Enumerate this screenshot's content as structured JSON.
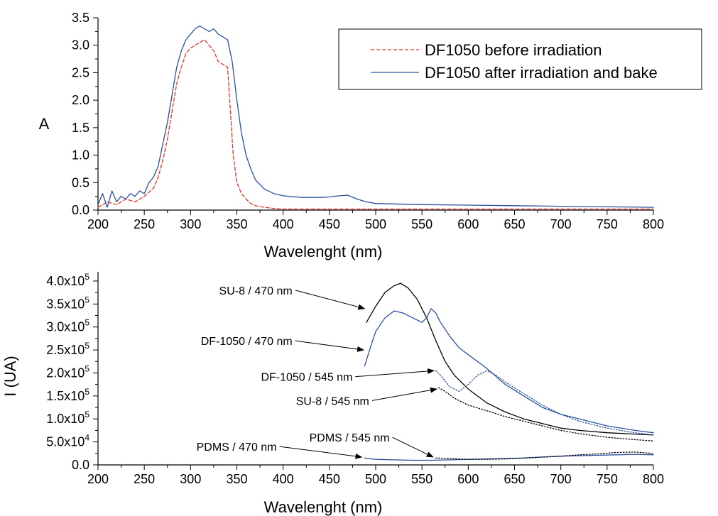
{
  "chart_data": [
    {
      "type": "line",
      "panel": "top",
      "xlabel": "Wavelenght (nm)",
      "ylabel": "A",
      "xlim": [
        200,
        800
      ],
      "ylim": [
        0,
        3.5
      ],
      "x_ticks": [
        "200",
        "250",
        "300",
        "350",
        "400",
        "450",
        "500",
        "550",
        "600",
        "650",
        "700",
        "750",
        "800"
      ],
      "y_ticks": [
        "0.0",
        "0.5",
        "1.0",
        "1.5",
        "2.0",
        "2.5",
        "3.0",
        "3.5"
      ],
      "legend_placement": "top-right",
      "series": [
        {
          "name": "DF1050 before irradiation",
          "color": "#e8332a",
          "style": "dashed",
          "x": [
            200,
            210,
            220,
            230,
            240,
            250,
            260,
            265,
            270,
            275,
            280,
            285,
            290,
            295,
            300,
            305,
            310,
            315,
            320,
            325,
            330,
            335,
            340,
            343,
            346,
            350,
            355,
            360,
            365,
            370,
            380,
            390,
            400,
            420,
            450,
            500,
            600,
            700,
            800
          ],
          "y": [
            0.05,
            0.15,
            0.1,
            0.2,
            0.15,
            0.25,
            0.4,
            0.6,
            0.9,
            1.3,
            1.8,
            2.3,
            2.6,
            2.85,
            2.95,
            3.0,
            3.05,
            3.1,
            3.0,
            2.9,
            2.7,
            2.65,
            2.6,
            1.8,
            1.0,
            0.5,
            0.3,
            0.2,
            0.12,
            0.08,
            0.05,
            0.03,
            0.02,
            0.02,
            0.02,
            0.02,
            0.02,
            0.02,
            0.02
          ]
        },
        {
          "name": "DF1050 after irradiation and bake",
          "color": "#2a4fa0",
          "style": "solid",
          "x": [
            200,
            205,
            210,
            215,
            220,
            225,
            230,
            235,
            240,
            245,
            250,
            255,
            260,
            265,
            270,
            275,
            280,
            285,
            290,
            295,
            300,
            305,
            310,
            315,
            320,
            325,
            330,
            335,
            340,
            345,
            350,
            355,
            360,
            365,
            370,
            380,
            390,
            400,
            420,
            440,
            450,
            460,
            470,
            480,
            490,
            500,
            550,
            600,
            650,
            700,
            750,
            800
          ],
          "y": [
            0.1,
            0.3,
            0.05,
            0.35,
            0.15,
            0.25,
            0.2,
            0.3,
            0.25,
            0.35,
            0.3,
            0.5,
            0.6,
            0.8,
            1.2,
            1.6,
            2.1,
            2.6,
            2.9,
            3.1,
            3.2,
            3.3,
            3.35,
            3.3,
            3.25,
            3.3,
            3.2,
            3.15,
            3.1,
            2.7,
            2.0,
            1.4,
            1.0,
            0.75,
            0.55,
            0.38,
            0.3,
            0.26,
            0.23,
            0.23,
            0.24,
            0.26,
            0.27,
            0.2,
            0.15,
            0.12,
            0.1,
            0.09,
            0.08,
            0.07,
            0.06,
            0.05
          ]
        }
      ]
    },
    {
      "type": "line",
      "panel": "bottom",
      "xlabel": "Wavelenght (nm)",
      "ylabel": "I (UA)",
      "xlim": [
        200,
        800
      ],
      "ylim": [
        0,
        420000
      ],
      "x_ticks": [
        "200",
        "250",
        "300",
        "350",
        "400",
        "450",
        "500",
        "550",
        "600",
        "650",
        "700",
        "750",
        "800"
      ],
      "y_ticks": [
        {
          "value": 0,
          "label": "0.0",
          "sup": ""
        },
        {
          "value": 50000,
          "label": "5.0x10",
          "sup": "4"
        },
        {
          "value": 100000,
          "label": "1.0x10",
          "sup": "5"
        },
        {
          "value": 150000,
          "label": "1.5x10",
          "sup": "5"
        },
        {
          "value": 200000,
          "label": "2.0x10",
          "sup": "5"
        },
        {
          "value": 250000,
          "label": "2.5x10",
          "sup": "5"
        },
        {
          "value": 300000,
          "label": "3.0x10",
          "sup": "5"
        },
        {
          "value": 350000,
          "label": "3.5x10",
          "sup": "5"
        },
        {
          "value": 400000,
          "label": "4.0x10",
          "sup": "5"
        }
      ],
      "series": [
        {
          "name": "SU-8 / 470 nm",
          "color": "#000000",
          "style": "solid",
          "x": [
            490,
            500,
            510,
            520,
            527,
            535,
            545,
            555,
            565,
            575,
            585,
            600,
            620,
            640,
            660,
            680,
            700,
            720,
            750,
            780,
            800
          ],
          "y": [
            310000,
            345000,
            375000,
            390000,
            395000,
            385000,
            360000,
            320000,
            270000,
            225000,
            195000,
            165000,
            135000,
            115000,
            100000,
            90000,
            80000,
            75000,
            70000,
            67000,
            65000
          ],
          "annotation": {
            "text": "SU-8 / 470 nm",
            "x": 410,
            "y": 380000,
            "ax": 488,
            "ay": 340000
          }
        },
        {
          "name": "DF-1050 / 470 nm",
          "color": "#2a4fa0",
          "style": "solid",
          "x": [
            488,
            495,
            500,
            510,
            520,
            530,
            540,
            550,
            555,
            560,
            565,
            570,
            580,
            590,
            600,
            620,
            640,
            660,
            680,
            700,
            720,
            750,
            780,
            800
          ],
          "y": [
            215000,
            260000,
            290000,
            320000,
            335000,
            330000,
            320000,
            310000,
            320000,
            340000,
            330000,
            310000,
            280000,
            255000,
            240000,
            210000,
            175000,
            150000,
            125000,
            110000,
            100000,
            85000,
            75000,
            70000
          ],
          "annotation": {
            "text": "DF-1050 / 470 nm",
            "x": 410,
            "y": 270000,
            "ax": 487,
            "ay": 250000
          }
        },
        {
          "name": "DF-1050 / 545 nm",
          "color": "#2a4fa0",
          "style": "dotted",
          "x": [
            565,
            570,
            580,
            590,
            600,
            610,
            620,
            630,
            640,
            660,
            680,
            700,
            720,
            750,
            780,
            800
          ],
          "y": [
            205000,
            195000,
            170000,
            160000,
            175000,
            195000,
            205000,
            195000,
            180000,
            155000,
            130000,
            110000,
            95000,
            80000,
            70000,
            65000
          ],
          "annotation": {
            "text": "DF-1050 / 545 nm",
            "x": 475,
            "y": 192000,
            "ax": 563,
            "ay": 205000
          }
        },
        {
          "name": "SU-8 / 545 nm",
          "color": "#000000",
          "style": "dotted",
          "x": [
            568,
            575,
            585,
            600,
            620,
            640,
            660,
            680,
            700,
            720,
            750,
            780,
            800
          ],
          "y": [
            168000,
            160000,
            145000,
            130000,
            118000,
            105000,
            95000,
            85000,
            75000,
            68000,
            60000,
            55000,
            52000
          ],
          "annotation": {
            "text": "SU-8 / 545 nm",
            "x": 493,
            "y": 140000,
            "ax": 566,
            "ay": 165000
          }
        },
        {
          "name": "PDMS / 470 nm",
          "color": "#2a4fa0",
          "style": "solid",
          "x": [
            488,
            500,
            520,
            540,
            560,
            580,
            600,
            620,
            640,
            660,
            680,
            700,
            720,
            740,
            760,
            780,
            800
          ],
          "y": [
            15000,
            12000,
            11000,
            10000,
            10000,
            11000,
            12000,
            13000,
            14000,
            15000,
            17000,
            19000,
            20000,
            21000,
            22000,
            23000,
            22000
          ],
          "annotation": {
            "text": "PDMS / 470 nm",
            "x": 393,
            "y": 40000,
            "ax": 485,
            "ay": 17000
          }
        },
        {
          "name": "PDMS / 545 nm",
          "color": "#000000",
          "style": "dotted",
          "x": [
            565,
            580,
            600,
            620,
            640,
            660,
            680,
            700,
            720,
            740,
            760,
            780,
            800
          ],
          "y": [
            15000,
            14000,
            12000,
            12000,
            13000,
            15000,
            17000,
            19000,
            22000,
            24000,
            27000,
            28000,
            25000
          ],
          "annotation": {
            "text": "PDMS / 545 nm",
            "x": 515,
            "y": 60000,
            "ax": 562,
            "ay": 17000
          }
        }
      ]
    }
  ]
}
